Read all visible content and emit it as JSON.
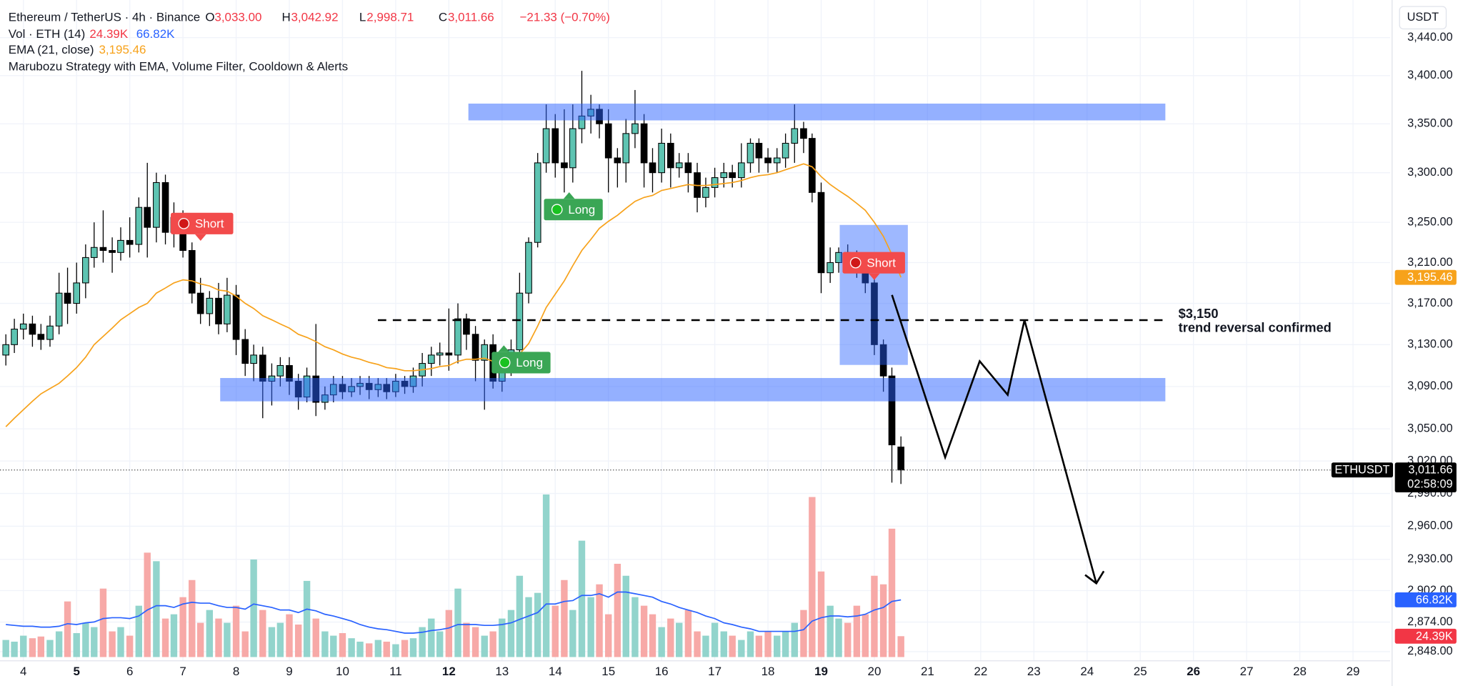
{
  "chart_data": {
    "type": "candlestick",
    "title": "Ethereum / TetherUS · 4h · Binance",
    "ohlc_labels": [
      "O",
      "H",
      "L",
      "C"
    ],
    "ohlc_values": [
      "3,033.00",
      "3,042.92",
      "2,998.71",
      "3,011.66"
    ],
    "change": "−21.33 (−0.70%)",
    "strategy": "Marubozu Strategy with EMA, Volume Filter, Cooldown & Alerts",
    "currency": "USDT",
    "log_scale": true,
    "grid": true,
    "up_color": "#5ec4b2",
    "down_color": "#000000",
    "xlim": [
      3.56,
      29.7
    ],
    "xticks": [
      4,
      5,
      6,
      7,
      8,
      9,
      10,
      11,
      12,
      13,
      14,
      15,
      16,
      17,
      18,
      19,
      20,
      21,
      22,
      23,
      24,
      25,
      26,
      27,
      28,
      29
    ],
    "bold_xticks": [
      5,
      12,
      19,
      26
    ],
    "ylim": [
      2840,
      3480
    ],
    "yticks": [
      {
        "value": 3440,
        "label": "3,440.00"
      },
      {
        "value": 3400,
        "label": "3,400.00"
      },
      {
        "value": 3350,
        "label": "3,350.00"
      },
      {
        "value": 3300,
        "label": "3,300.00"
      },
      {
        "value": 3250,
        "label": "3,250.00"
      },
      {
        "value": 3210,
        "label": "3,210.00"
      },
      {
        "value": 3170,
        "label": "3,170.00"
      },
      {
        "value": 3130,
        "label": "3,130.00"
      },
      {
        "value": 3090,
        "label": "3,090.00"
      },
      {
        "value": 3050,
        "label": "3,050.00"
      },
      {
        "value": 3020,
        "label": "3,020.00"
      },
      {
        "value": 2990,
        "label": "2,990.00"
      },
      {
        "value": 2960,
        "label": "2,960.00"
      },
      {
        "value": 2930,
        "label": "2,930.00"
      },
      {
        "value": 2902,
        "label": "2,902.00"
      },
      {
        "value": 2874,
        "label": "2,874.00"
      },
      {
        "value": 2848,
        "label": "2,848.00"
      }
    ],
    "y2lim": [
      0,
      200
    ],
    "x": [
      3.67,
      3.83,
      4,
      4.17,
      4.33,
      4.5,
      4.67,
      4.83,
      5,
      5.17,
      5.33,
      5.5,
      5.67,
      5.83,
      6,
      6.17,
      6.33,
      6.5,
      6.67,
      6.83,
      7,
      7.17,
      7.33,
      7.5,
      7.67,
      7.83,
      8,
      8.17,
      8.33,
      8.5,
      8.67,
      8.83,
      9,
      9.17,
      9.33,
      9.5,
      9.67,
      9.83,
      10,
      10.17,
      10.33,
      10.5,
      10.67,
      10.83,
      11,
      11.17,
      11.33,
      11.5,
      11.67,
      11.83,
      12,
      12.17,
      12.33,
      12.5,
      12.67,
      12.83,
      13,
      13.17,
      13.33,
      13.5,
      13.67,
      13.83,
      14,
      14.17,
      14.33,
      14.5,
      14.67,
      14.83,
      15,
      15.17,
      15.33,
      15.5,
      15.67,
      15.83,
      16,
      16.17,
      16.33,
      16.5,
      16.67,
      16.83,
      17,
      17.17,
      17.33,
      17.5,
      17.67,
      17.83,
      18,
      18.17,
      18.33,
      18.5,
      18.67,
      18.83,
      19,
      19.17,
      19.33,
      19.5,
      19.67,
      19.83,
      20,
      20.17,
      20.33,
      20.5
    ],
    "open": [
      3120,
      3130,
      3145,
      3150,
      3140,
      3135,
      3148,
      3180,
      3170,
      3190,
      3215,
      3225,
      3222,
      3220,
      3232,
      3228,
      3265,
      3245,
      3290,
      3240,
      3255,
      3222,
      3180,
      3160,
      3175,
      3150,
      3178,
      3135,
      3112,
      3120,
      3095,
      3100,
      3110,
      3095,
      3080,
      3100,
      3075,
      3082,
      3092,
      3085,
      3090,
      3093,
      3087,
      3092,
      3085,
      3095,
      3090,
      3100,
      3112,
      3120,
      3122,
      3120,
      3155,
      3140,
      3115,
      3130,
      3095,
      3110,
      3125,
      3180,
      3230,
      3310,
      3345,
      3310,
      3305,
      3345,
      3358,
      3365,
      3350,
      3315,
      3310,
      3340,
      3350,
      3310,
      3300,
      3330,
      3305,
      3310,
      3300,
      3275,
      3285,
      3295,
      3300,
      3295,
      3310,
      3330,
      3315,
      3310,
      3315,
      3330,
      3345,
      3335,
      3280,
      3200,
      3210,
      3220,
      3212,
      3205,
      3190,
      3130,
      3100,
      3033
    ],
    "high": [
      3140,
      3155,
      3160,
      3158,
      3150,
      3158,
      3200,
      3205,
      3210,
      3228,
      3250,
      3262,
      3235,
      3245,
      3255,
      3275,
      3310,
      3300,
      3298,
      3270,
      3262,
      3230,
      3195,
      3182,
      3190,
      3195,
      3188,
      3145,
      3130,
      3128,
      3112,
      3118,
      3118,
      3102,
      3108,
      3150,
      3090,
      3100,
      3100,
      3098,
      3100,
      3100,
      3098,
      3098,
      3102,
      3100,
      3108,
      3122,
      3128,
      3132,
      3165,
      3170,
      3160,
      3148,
      3135,
      3140,
      3120,
      3135,
      3200,
      3235,
      3320,
      3370,
      3360,
      3365,
      3370,
      3405,
      3380,
      3370,
      3365,
      3325,
      3355,
      3385,
      3360,
      3325,
      3345,
      3340,
      3320,
      3320,
      3310,
      3295,
      3305,
      3310,
      3308,
      3330,
      3335,
      3335,
      3325,
      3325,
      3340,
      3370,
      3352,
      3340,
      3290,
      3225,
      3225,
      3228,
      3222,
      3218,
      3198,
      3135,
      3108,
      3042.92
    ],
    "low": [
      3110,
      3122,
      3135,
      3128,
      3125,
      3128,
      3140,
      3150,
      3160,
      3175,
      3205,
      3210,
      3200,
      3212,
      3215,
      3220,
      3215,
      3230,
      3228,
      3225,
      3215,
      3170,
      3150,
      3148,
      3140,
      3142,
      3120,
      3100,
      3095,
      3060,
      3072,
      3090,
      3082,
      3068,
      3075,
      3062,
      3068,
      3075,
      3078,
      3080,
      3082,
      3078,
      3080,
      3078,
      3080,
      3083,
      3084,
      3090,
      3100,
      3110,
      3105,
      3112,
      3125,
      3095,
      3068,
      3088,
      3085,
      3100,
      3115,
      3170,
      3225,
      3300,
      3295,
      3280,
      3290,
      3330,
      3340,
      3335,
      3280,
      3285,
      3290,
      3325,
      3285,
      3280,
      3290,
      3285,
      3295,
      3280,
      3260,
      3265,
      3275,
      3285,
      3285,
      3285,
      3300,
      3300,
      3300,
      3300,
      3305,
      3310,
      3320,
      3270,
      3180,
      3190,
      3200,
      3200,
      3195,
      3180,
      3120,
      3085,
      3000,
      2998.71
    ],
    "close": [
      3130,
      3145,
      3150,
      3140,
      3135,
      3148,
      3180,
      3170,
      3190,
      3215,
      3225,
      3222,
      3220,
      3232,
      3228,
      3265,
      3245,
      3290,
      3240,
      3255,
      3222,
      3180,
      3160,
      3175,
      3150,
      3178,
      3135,
      3112,
      3120,
      3095,
      3100,
      3110,
      3095,
      3080,
      3100,
      3075,
      3082,
      3092,
      3085,
      3090,
      3093,
      3087,
      3092,
      3085,
      3095,
      3090,
      3100,
      3112,
      3120,
      3122,
      3120,
      3155,
      3140,
      3115,
      3130,
      3095,
      3110,
      3125,
      3180,
      3230,
      3310,
      3345,
      3310,
      3305,
      3345,
      3358,
      3365,
      3350,
      3315,
      3310,
      3340,
      3350,
      3310,
      3300,
      3330,
      3305,
      3310,
      3300,
      3275,
      3285,
      3295,
      3300,
      3295,
      3310,
      3330,
      3315,
      3310,
      3315,
      3330,
      3345,
      3335,
      3280,
      3200,
      3210,
      3220,
      3212,
      3205,
      3190,
      3130,
      3100,
      3035,
      3011.66
    ],
    "last_price": {
      "label": "3,011.66",
      "countdown": "02:58:09",
      "symbol": "ETHUSDT"
    },
    "ema": {
      "name": "EMA (21, close)",
      "color": "#f7a21b",
      "last_label": "3,195.46",
      "values": [
        3052,
        3060,
        3068,
        3076,
        3083,
        3088,
        3093,
        3100,
        3108,
        3118,
        3130,
        3138,
        3146,
        3154,
        3160,
        3166,
        3170,
        3180,
        3185,
        3190,
        3193,
        3192,
        3189,
        3187,
        3183,
        3182,
        3177,
        3170,
        3165,
        3158,
        3154,
        3150,
        3146,
        3140,
        3137,
        3133,
        3128,
        3125,
        3121,
        3118,
        3116,
        3113,
        3111,
        3108,
        3107,
        3105,
        3105,
        3106,
        3107,
        3109,
        3110,
        3114,
        3116,
        3116,
        3117,
        3114,
        3114,
        3115,
        3121,
        3131,
        3148,
        3166,
        3179,
        3192,
        3207,
        3222,
        3233,
        3244,
        3251,
        3257,
        3264,
        3271,
        3275,
        3277,
        3282,
        3284,
        3286,
        3288,
        3287,
        3287,
        3288,
        3289,
        3290,
        3292,
        3295,
        3297,
        3298,
        3300,
        3303,
        3306,
        3309,
        3306,
        3296,
        3288,
        3282,
        3276,
        3269,
        3262,
        3250,
        3236,
        3218,
        3195.46
      ]
    },
    "volume": {
      "name": "Vol · ETH (14)",
      "axis": "y2",
      "up_color": "#92d4cc",
      "down_color": "#f7a9a7",
      "last_label": "24.39K",
      "label_color": "#f23645",
      "values": [
        20,
        18,
        25,
        22,
        24,
        20,
        30,
        65,
        28,
        40,
        35,
        80,
        30,
        35,
        25,
        60,
        122,
        112,
        45,
        50,
        70,
        90,
        40,
        55,
        45,
        40,
        60,
        30,
        114,
        55,
        35,
        40,
        50,
        38,
        89,
        45,
        30,
        25,
        28,
        22,
        18,
        16,
        20,
        18,
        15,
        20,
        22,
        35,
        45,
        30,
        55,
        80,
        40,
        35,
        25,
        30,
        45,
        55,
        95,
        70,
        75,
        190,
        60,
        90,
        55,
        136,
        70,
        85,
        50,
        109,
        95,
        70,
        60,
        50,
        35,
        45,
        40,
        55,
        30,
        25,
        40,
        30,
        25,
        20,
        30,
        25,
        30,
        25,
        30,
        40,
        55,
        187,
        100,
        60,
        45,
        40,
        60,
        50,
        95,
        85,
        150,
        24.39
      ]
    },
    "volume_ma": {
      "axis": "y2",
      "color": "#2962ff",
      "last_label": "66.82K",
      "values": [
        38,
        37,
        36,
        36,
        35,
        35,
        36,
        39,
        38,
        40,
        41,
        45,
        46,
        46,
        45,
        48,
        55,
        60,
        60,
        58,
        62,
        64,
        63,
        63,
        60,
        58,
        58,
        56,
        62,
        60,
        58,
        55,
        55,
        52,
        56,
        54,
        50,
        48,
        45,
        42,
        38,
        35,
        33,
        32,
        30,
        28,
        28,
        29,
        31,
        32,
        34,
        38,
        38,
        38,
        37,
        37,
        38,
        40,
        44,
        48,
        52,
        62,
        62,
        65,
        66,
        72,
        72,
        74,
        70,
        76,
        76,
        74,
        72,
        70,
        65,
        62,
        58,
        55,
        52,
        48,
        45,
        40,
        38,
        35,
        33,
        30,
        30,
        30,
        30,
        30,
        32,
        42,
        46,
        48,
        48,
        47,
        48,
        50,
        55,
        58,
        65,
        66.82
      ]
    },
    "signals": [
      {
        "label": "Short",
        "color": "#f24b4b"
      },
      {
        "label": "Long",
        "color": "#3aa655"
      },
      {
        "label": "Long",
        "color": "#3aa655"
      },
      {
        "label": "Short",
        "color": "#f24b4b"
      }
    ],
    "annotations": [
      "$3,150",
      "trend reversal confirmed"
    ]
  }
}
